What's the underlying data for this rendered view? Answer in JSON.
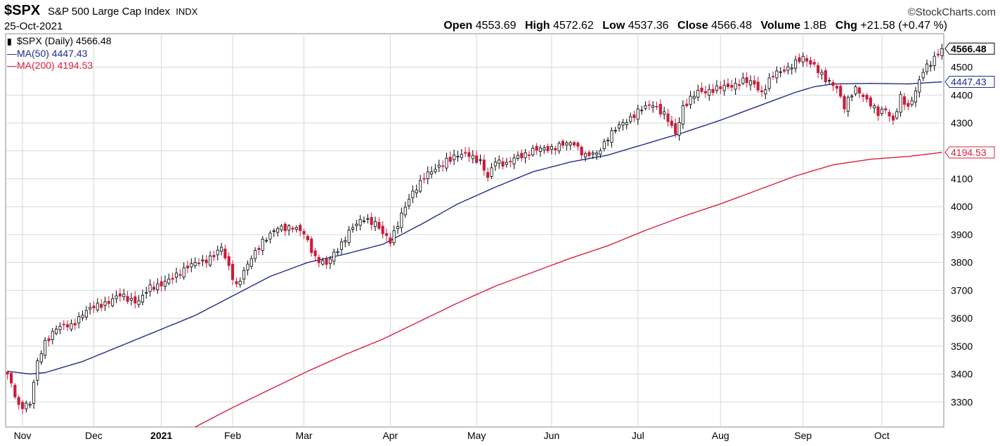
{
  "header": {
    "ticker": "$SPX",
    "name": "S&P 500 Large Cap Index",
    "exchange": "INDX",
    "credit": "©StockCharts.com",
    "date": "25-Oct-2021",
    "quote": {
      "open_label": "Open",
      "open": "4553.69",
      "high_label": "High",
      "high": "4572.62",
      "low_label": "Low",
      "low": "4537.36",
      "close_label": "Close",
      "close": "4566.48",
      "volume_label": "Volume",
      "volume": "1.8B",
      "chg_label": "Chg",
      "chg": "+21.58 (+0.47 %)"
    }
  },
  "legend": {
    "price": "$SPX (Daily) 4566.48",
    "ma50": "MA(50) 4447.43",
    "ma200": "MA(200) 4194.53"
  },
  "colors": {
    "up": "#000000",
    "down": "#cc1a3a",
    "ma50": "#1f2d8a",
    "ma200": "#d9203f",
    "grid": "#d8d8d8"
  },
  "chart_data": {
    "type": "candlestick",
    "grid": true,
    "y_axis_side": "right",
    "ylim": [
      3210,
      4620
    ],
    "y_ticks": [
      3300,
      3400,
      3500,
      3600,
      3700,
      3800,
      3900,
      4000,
      4100,
      4200,
      4300,
      4400,
      4500
    ],
    "x_tick_labels": [
      "Nov",
      "Dec",
      "2021",
      "Feb",
      "Mar",
      "Apr",
      "May",
      "Jun",
      "Jul",
      "Aug",
      "Sep",
      "Oct"
    ],
    "x_tick_days": [
      4,
      23,
      41,
      60,
      79,
      102,
      125,
      145,
      168,
      190,
      212,
      233
    ],
    "n_days": 250,
    "price_labels": {
      "close": "4566.48",
      "ma50": "4447.43",
      "ma200": "4194.53"
    },
    "close_keyframes": [
      [
        0,
        3400
      ],
      [
        3,
        3280
      ],
      [
        6,
        3300
      ],
      [
        8,
        3440
      ],
      [
        10,
        3510
      ],
      [
        13,
        3570
      ],
      [
        17,
        3570
      ],
      [
        20,
        3620
      ],
      [
        25,
        3650
      ],
      [
        30,
        3680
      ],
      [
        35,
        3660
      ],
      [
        38,
        3710
      ],
      [
        44,
        3740
      ],
      [
        48,
        3790
      ],
      [
        52,
        3800
      ],
      [
        57,
        3850
      ],
      [
        59,
        3780
      ],
      [
        61,
        3720
      ],
      [
        64,
        3790
      ],
      [
        68,
        3880
      ],
      [
        72,
        3920
      ],
      [
        76,
        3930
      ],
      [
        79,
        3900
      ],
      [
        82,
        3820
      ],
      [
        85,
        3790
      ],
      [
        88,
        3850
      ],
      [
        91,
        3910
      ],
      [
        95,
        3960
      ],
      [
        98,
        3940
      ],
      [
        100,
        3900
      ],
      [
        102,
        3880
      ],
      [
        105,
        3970
      ],
      [
        108,
        4050
      ],
      [
        111,
        4110
      ],
      [
        114,
        4130
      ],
      [
        117,
        4170
      ],
      [
        120,
        4180
      ],
      [
        123,
        4190
      ],
      [
        126,
        4160
      ],
      [
        128,
        4100
      ],
      [
        130,
        4170
      ],
      [
        133,
        4150
      ],
      [
        136,
        4180
      ],
      [
        140,
        4200
      ],
      [
        144,
        4210
      ],
      [
        148,
        4220
      ],
      [
        151,
        4230
      ],
      [
        154,
        4180
      ],
      [
        157,
        4190
      ],
      [
        160,
        4250
      ],
      [
        164,
        4300
      ],
      [
        168,
        4340
      ],
      [
        172,
        4370
      ],
      [
        175,
        4330
      ],
      [
        178,
        4260
      ],
      [
        180,
        4360
      ],
      [
        184,
        4410
      ],
      [
        188,
        4420
      ],
      [
        192,
        4430
      ],
      [
        196,
        4450
      ],
      [
        199,
        4440
      ],
      [
        201,
        4410
      ],
      [
        204,
        4470
      ],
      [
        208,
        4500
      ],
      [
        212,
        4530
      ],
      [
        215,
        4510
      ],
      [
        218,
        4450
      ],
      [
        221,
        4430
      ],
      [
        223,
        4360
      ],
      [
        226,
        4420
      ],
      [
        228,
        4400
      ],
      [
        230,
        4370
      ],
      [
        232,
        4330
      ],
      [
        234,
        4350
      ],
      [
        236,
        4310
      ],
      [
        238,
        4390
      ],
      [
        240,
        4350
      ],
      [
        242,
        4420
      ],
      [
        244,
        4490
      ],
      [
        246,
        4510
      ],
      [
        249,
        4566.48
      ]
    ],
    "ma50_keyframes": [
      [
        0,
        3410
      ],
      [
        6,
        3400
      ],
      [
        10,
        3405
      ],
      [
        20,
        3445
      ],
      [
        30,
        3500
      ],
      [
        40,
        3555
      ],
      [
        50,
        3610
      ],
      [
        60,
        3680
      ],
      [
        70,
        3750
      ],
      [
        80,
        3800
      ],
      [
        90,
        3830
      ],
      [
        100,
        3865
      ],
      [
        110,
        3935
      ],
      [
        120,
        4010
      ],
      [
        130,
        4070
      ],
      [
        140,
        4125
      ],
      [
        150,
        4160
      ],
      [
        160,
        4185
      ],
      [
        170,
        4225
      ],
      [
        180,
        4265
      ],
      [
        190,
        4310
      ],
      [
        200,
        4360
      ],
      [
        210,
        4410
      ],
      [
        215,
        4430
      ],
      [
        220,
        4440
      ],
      [
        230,
        4442
      ],
      [
        240,
        4440
      ],
      [
        249,
        4447.43
      ]
    ],
    "ma200_keyframes": [
      [
        50,
        3210
      ],
      [
        60,
        3280
      ],
      [
        70,
        3345
      ],
      [
        80,
        3410
      ],
      [
        90,
        3470
      ],
      [
        100,
        3525
      ],
      [
        110,
        3590
      ],
      [
        120,
        3655
      ],
      [
        130,
        3715
      ],
      [
        140,
        3765
      ],
      [
        150,
        3815
      ],
      [
        160,
        3860
      ],
      [
        170,
        3915
      ],
      [
        180,
        3965
      ],
      [
        190,
        4010
      ],
      [
        200,
        4060
      ],
      [
        210,
        4110
      ],
      [
        220,
        4150
      ],
      [
        230,
        4170
      ],
      [
        240,
        4180
      ],
      [
        249,
        4194.53
      ]
    ]
  }
}
